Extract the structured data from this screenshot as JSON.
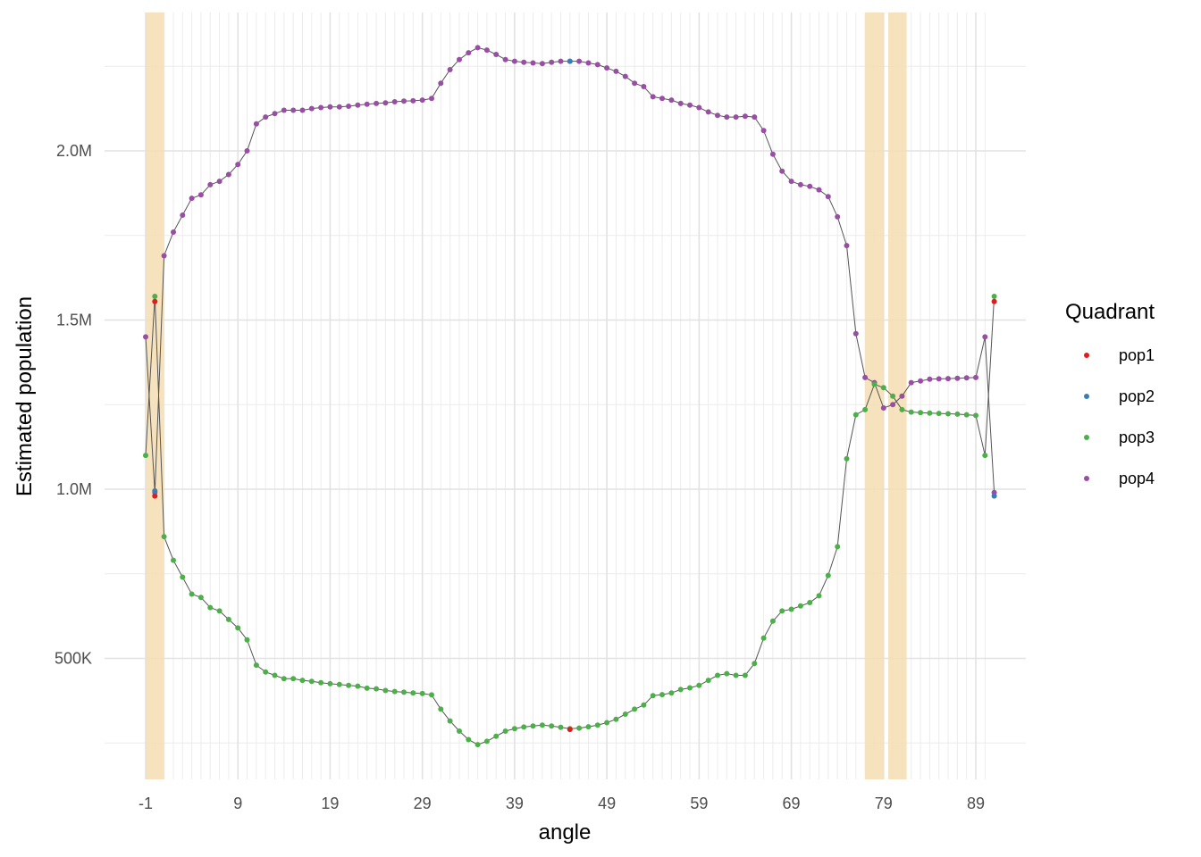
{
  "chart_data": {
    "type": "line",
    "xlabel": "angle",
    "ylabel": "Estimated population",
    "xlim": [
      -1,
      90
    ],
    "ylim": [
      230000,
      2330000
    ],
    "x_ticks": [
      -1,
      9,
      19,
      29,
      39,
      49,
      59,
      69,
      79,
      89
    ],
    "x_tick_labels": [
      "-1",
      "9",
      "19",
      "29",
      "39",
      "49",
      "59",
      "69",
      "79",
      "89"
    ],
    "y_ticks": [
      500000,
      1000000,
      1500000,
      2000000
    ],
    "y_tick_labels": [
      "500K",
      "1.0M",
      "1.5M",
      "2.0M"
    ],
    "grid": true,
    "legend": {
      "title": "Quadrant",
      "position": "right",
      "entries": [
        {
          "name": "pop1",
          "color": "#e41a1c"
        },
        {
          "name": "pop2",
          "color": "#377eb8"
        },
        {
          "name": "pop3",
          "color": "#4daf4a"
        },
        {
          "name": "pop4",
          "color": "#984ea3"
        }
      ]
    },
    "highlight_bands": [
      [
        -1,
        1
      ],
      [
        77,
        79
      ],
      [
        79.5,
        81.5
      ]
    ],
    "highlight_color": "#f5deb3",
    "line_color": "#555555",
    "series": [
      {
        "name": "pop4",
        "color": "#984ea3",
        "points": [
          [
            -1,
            1450000
          ],
          [
            0,
            990000
          ],
          [
            1,
            1690000
          ],
          [
            2,
            1760000
          ],
          [
            3,
            1810000
          ],
          [
            4,
            1860000
          ],
          [
            5,
            1870000
          ],
          [
            6,
            1900000
          ],
          [
            7,
            1910000
          ],
          [
            8,
            1930000
          ],
          [
            9,
            1960000
          ],
          [
            10,
            2000000
          ],
          [
            11,
            2080000
          ],
          [
            12,
            2100000
          ],
          [
            13,
            2110000
          ],
          [
            14,
            2120000
          ],
          [
            15,
            2120000
          ],
          [
            16,
            2120000
          ],
          [
            17,
            2125000
          ],
          [
            18,
            2128000
          ],
          [
            19,
            2130000
          ],
          [
            20,
            2130000
          ],
          [
            21,
            2132000
          ],
          [
            22,
            2135000
          ],
          [
            23,
            2138000
          ],
          [
            24,
            2140000
          ],
          [
            25,
            2142000
          ],
          [
            26,
            2145000
          ],
          [
            27,
            2147000
          ],
          [
            28,
            2148000
          ],
          [
            29,
            2150000
          ],
          [
            30,
            2155000
          ],
          [
            31,
            2200000
          ],
          [
            32,
            2240000
          ],
          [
            33,
            2270000
          ],
          [
            34,
            2290000
          ],
          [
            35,
            2305000
          ],
          [
            36,
            2298000
          ],
          [
            37,
            2285000
          ],
          [
            38,
            2270000
          ],
          [
            39,
            2265000
          ],
          [
            40,
            2262000
          ],
          [
            41,
            2260000
          ],
          [
            42,
            2258000
          ],
          [
            43,
            2262000
          ],
          [
            44,
            2265000
          ],
          [
            45,
            2265000
          ],
          [
            46,
            2265000
          ],
          [
            47,
            2260000
          ],
          [
            48,
            2255000
          ],
          [
            49,
            2245000
          ],
          [
            50,
            2235000
          ],
          [
            51,
            2220000
          ],
          [
            52,
            2200000
          ],
          [
            53,
            2190000
          ],
          [
            54,
            2160000
          ],
          [
            55,
            2155000
          ],
          [
            56,
            2150000
          ],
          [
            57,
            2140000
          ],
          [
            58,
            2135000
          ],
          [
            59,
            2128000
          ],
          [
            60,
            2115000
          ],
          [
            61,
            2105000
          ],
          [
            62,
            2100000
          ],
          [
            63,
            2100000
          ],
          [
            64,
            2102000
          ],
          [
            65,
            2100000
          ],
          [
            66,
            2060000
          ],
          [
            67,
            1990000
          ],
          [
            68,
            1940000
          ],
          [
            69,
            1910000
          ],
          [
            70,
            1900000
          ],
          [
            71,
            1895000
          ],
          [
            72,
            1885000
          ],
          [
            73,
            1865000
          ],
          [
            74,
            1805000
          ],
          [
            75,
            1720000
          ],
          [
            76,
            1460000
          ],
          [
            77,
            1330000
          ],
          [
            78,
            1315000
          ],
          [
            79,
            1240000
          ],
          [
            80,
            1250000
          ],
          [
            81,
            1275000
          ],
          [
            82,
            1315000
          ],
          [
            83,
            1320000
          ],
          [
            84,
            1325000
          ],
          [
            85,
            1326000
          ],
          [
            86,
            1327000
          ],
          [
            87,
            1328000
          ],
          [
            88,
            1329000
          ],
          [
            89,
            1330000
          ],
          [
            90,
            1450000
          ],
          [
            91,
            990000
          ]
        ]
      },
      {
        "name": "pop3",
        "color": "#4daf4a",
        "points": [
          [
            -1,
            1100000
          ],
          [
            0,
            1570000
          ],
          [
            1,
            860000
          ],
          [
            2,
            790000
          ],
          [
            3,
            740000
          ],
          [
            4,
            690000
          ],
          [
            5,
            680000
          ],
          [
            6,
            650000
          ],
          [
            7,
            640000
          ],
          [
            8,
            615000
          ],
          [
            9,
            590000
          ],
          [
            10,
            555000
          ],
          [
            11,
            480000
          ],
          [
            12,
            460000
          ],
          [
            13,
            450000
          ],
          [
            14,
            440000
          ],
          [
            15,
            440000
          ],
          [
            16,
            435000
          ],
          [
            17,
            432000
          ],
          [
            18,
            428000
          ],
          [
            19,
            425000
          ],
          [
            20,
            423000
          ],
          [
            21,
            420000
          ],
          [
            22,
            418000
          ],
          [
            23,
            412000
          ],
          [
            24,
            410000
          ],
          [
            25,
            405000
          ],
          [
            26,
            402000
          ],
          [
            27,
            400000
          ],
          [
            28,
            398000
          ],
          [
            29,
            396000
          ],
          [
            30,
            392000
          ],
          [
            31,
            350000
          ],
          [
            32,
            315000
          ],
          [
            33,
            285000
          ],
          [
            34,
            260000
          ],
          [
            35,
            245000
          ],
          [
            36,
            255000
          ],
          [
            37,
            270000
          ],
          [
            38,
            285000
          ],
          [
            39,
            292000
          ],
          [
            40,
            297000
          ],
          [
            41,
            300000
          ],
          [
            42,
            303000
          ],
          [
            43,
            300000
          ],
          [
            44,
            296000
          ],
          [
            45,
            292000
          ],
          [
            46,
            294000
          ],
          [
            47,
            298000
          ],
          [
            48,
            303000
          ],
          [
            49,
            310000
          ],
          [
            50,
            320000
          ],
          [
            51,
            335000
          ],
          [
            52,
            350000
          ],
          [
            53,
            362000
          ],
          [
            54,
            390000
          ],
          [
            55,
            393000
          ],
          [
            56,
            398000
          ],
          [
            57,
            408000
          ],
          [
            58,
            413000
          ],
          [
            59,
            420000
          ],
          [
            60,
            435000
          ],
          [
            61,
            450000
          ],
          [
            62,
            455000
          ],
          [
            63,
            450000
          ],
          [
            64,
            450000
          ],
          [
            65,
            485000
          ],
          [
            66,
            560000
          ],
          [
            67,
            610000
          ],
          [
            68,
            640000
          ],
          [
            69,
            645000
          ],
          [
            70,
            655000
          ],
          [
            71,
            665000
          ],
          [
            72,
            685000
          ],
          [
            73,
            745000
          ],
          [
            74,
            830000
          ],
          [
            75,
            1090000
          ],
          [
            76,
            1220000
          ],
          [
            77,
            1235000
          ],
          [
            78,
            1310000
          ],
          [
            79,
            1300000
          ],
          [
            80,
            1275000
          ],
          [
            81,
            1235000
          ],
          [
            82,
            1228000
          ],
          [
            83,
            1226000
          ],
          [
            84,
            1225000
          ],
          [
            85,
            1224000
          ],
          [
            86,
            1223000
          ],
          [
            87,
            1222000
          ],
          [
            88,
            1220000
          ],
          [
            89,
            1218000
          ],
          [
            90,
            1100000
          ],
          [
            91,
            1570000
          ]
        ]
      },
      {
        "name": "pop1",
        "color": "#e41a1c",
        "points": [
          [
            0,
            1555000
          ],
          [
            0,
            980000
          ],
          [
            45,
            290000
          ],
          [
            91,
            1555000
          ]
        ]
      },
      {
        "name": "pop2",
        "color": "#377eb8",
        "points": [
          [
            0,
            995000
          ],
          [
            45,
            2265000
          ],
          [
            91,
            980000
          ]
        ]
      }
    ]
  }
}
